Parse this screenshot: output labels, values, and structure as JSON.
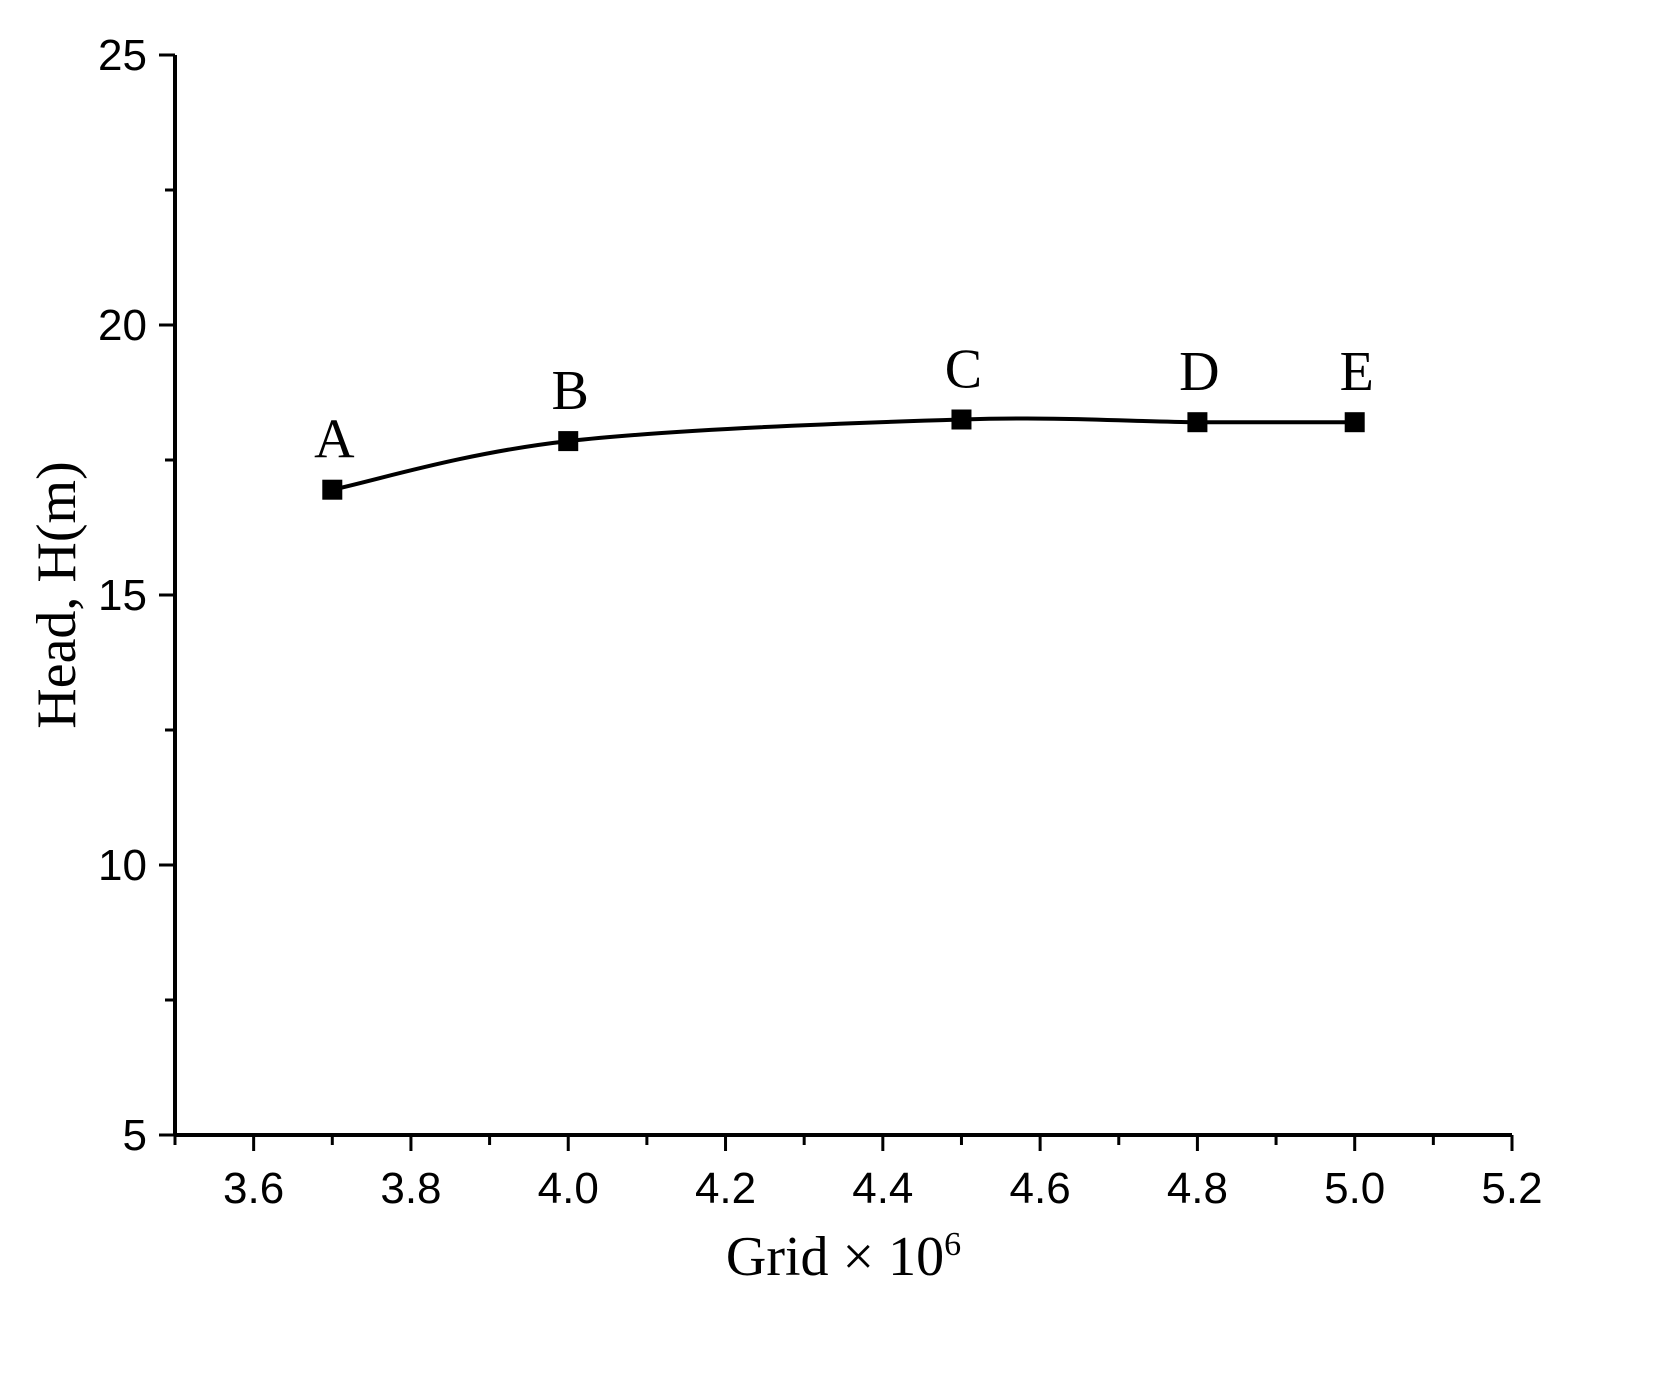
{
  "chart_data": {
    "type": "line",
    "title": "",
    "xlabel": "Grid × 10",
    "xlabel_superscript": "6",
    "ylabel": "Head, H(m)",
    "xlim": [
      3.5,
      5.2
    ],
    "ylim": [
      5,
      25
    ],
    "x_ticks": [
      "3.6",
      "3.8",
      "4.0",
      "4.2",
      "4.4",
      "4.6",
      "4.8",
      "5.0",
      "5.2"
    ],
    "y_ticks": [
      "5",
      "10",
      "15",
      "20",
      "25"
    ],
    "grid": false,
    "legend": "none",
    "series": [
      {
        "color": "#000000",
        "marker": "square",
        "points": [
          {
            "label": "A",
            "x": 3.7,
            "y": 16.95
          },
          {
            "label": "B",
            "x": 4.0,
            "y": 17.85
          },
          {
            "label": "C",
            "x": 4.5,
            "y": 18.25
          },
          {
            "label": "D",
            "x": 4.8,
            "y": 18.2
          },
          {
            "label": "E",
            "x": 5.0,
            "y": 18.2
          }
        ]
      }
    ]
  }
}
